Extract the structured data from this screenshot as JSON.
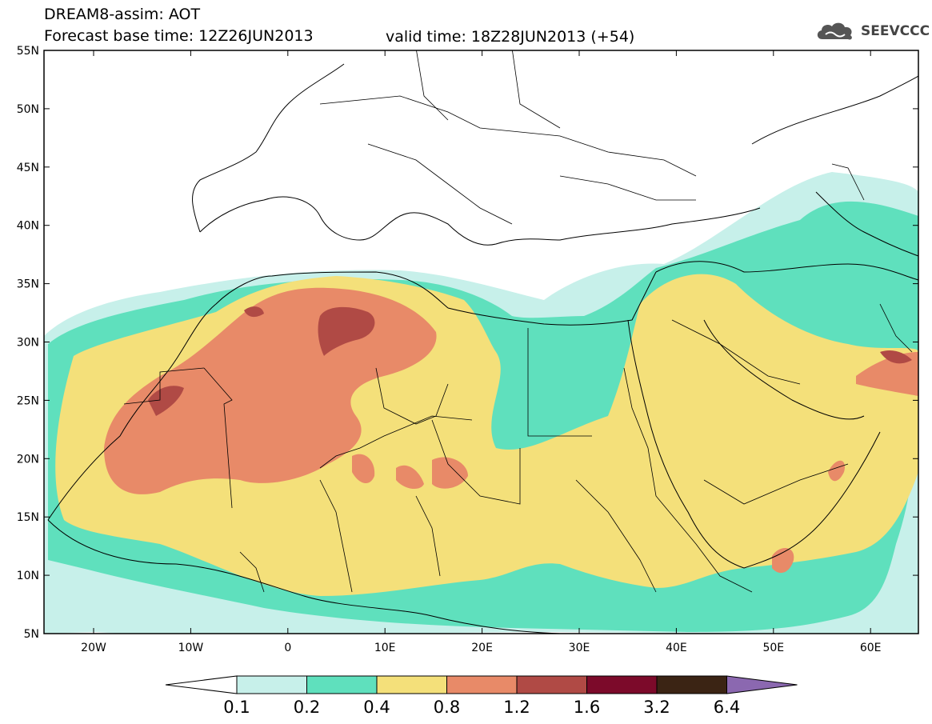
{
  "header": {
    "title": "DREAM8-assim: AOT",
    "base_time": "Forecast base time: 12Z26JUN2013",
    "valid_time": "valid time: 18Z28JUN2013 (+54)"
  },
  "logo": {
    "text": "SEEVCCC",
    "icon": "cloud-icon"
  },
  "map": {
    "lat_labels": [
      "55N",
      "50N",
      "45N",
      "40N",
      "35N",
      "30N",
      "25N",
      "20N",
      "15N",
      "10N",
      "5N"
    ],
    "lon_labels": [
      "20W",
      "10W",
      "0",
      "10E",
      "20E",
      "30E",
      "40E",
      "50E",
      "60E"
    ]
  },
  "colorbar": {
    "colors": [
      "#ffffff",
      "#c7f0ea",
      "#5fe0bd",
      "#f4e07a",
      "#e88a68",
      "#b04a45",
      "#7c0a2a",
      "#3b2414",
      "#8b68b0"
    ],
    "labels": [
      "0.1",
      "0.2",
      "0.4",
      "0.8",
      "1.2",
      "1.6",
      "3.2",
      "6.4"
    ]
  }
}
